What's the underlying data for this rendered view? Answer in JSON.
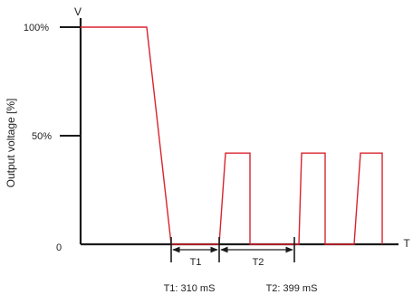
{
  "diagram": {
    "y_axis_symbol": "V",
    "x_axis_symbol": "T",
    "y_axis_title": "Output voltage [%]",
    "y_ticks": [
      "100%",
      "50%",
      "0"
    ],
    "interval_labels": [
      "T1",
      "T2"
    ],
    "captions": [
      "T1: 310 mS",
      "T2: 399 mS"
    ],
    "colors": {
      "waveform": "#d9232e",
      "axis": "#1a1a1a"
    }
  },
  "chart_data": {
    "type": "line",
    "xlabel": "T",
    "ylabel": "Output voltage [%]",
    "ylim": [
      0,
      100
    ],
    "y_ticks": [
      0,
      50,
      100
    ],
    "series": [
      {
        "values": [
          100,
          100,
          0,
          0,
          42,
          42,
          0,
          0,
          42,
          42,
          0,
          0,
          42,
          42,
          0
        ]
      }
    ],
    "annotations": [
      {
        "label": "T1",
        "caption": "T1: 310 mS"
      },
      {
        "label": "T2",
        "caption": "T2: 399 mS"
      }
    ]
  }
}
